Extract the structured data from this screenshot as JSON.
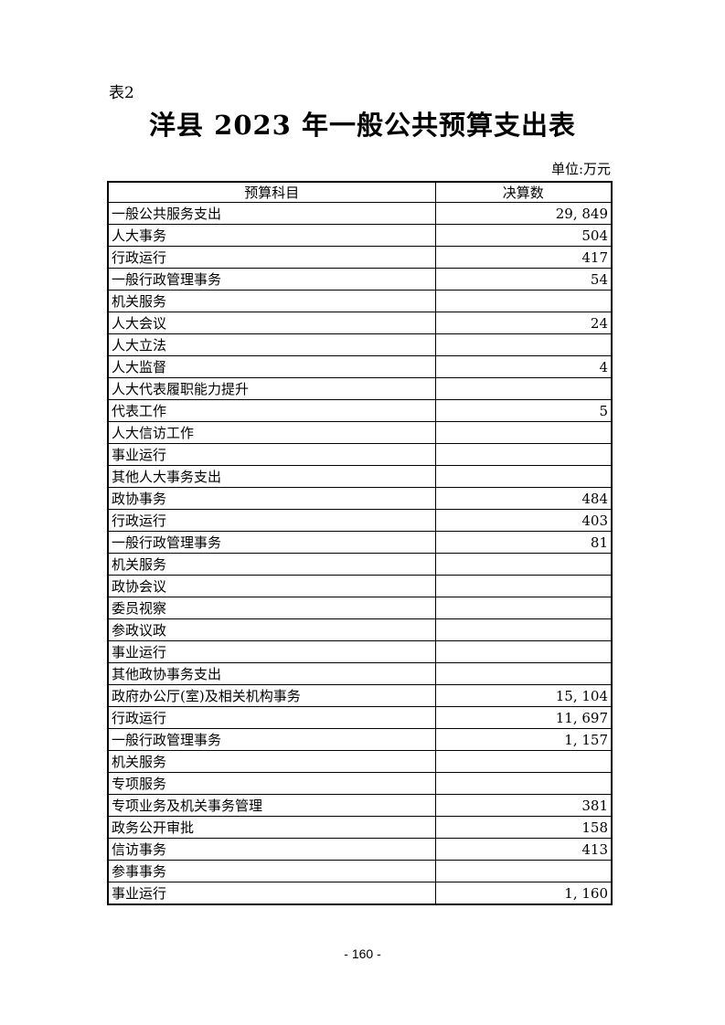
{
  "page": {
    "table_label": "表2",
    "title": "洋县 2023 年一般公共预算支出表",
    "unit_note": "单位:万元",
    "footer_page_number": "- 160 -"
  },
  "table": {
    "columns": [
      "预算科目",
      "决算数"
    ],
    "rows": [
      {
        "subject": "一般公共服务支出",
        "amount": "29, 849",
        "indent": 0
      },
      {
        "subject": "人大事务",
        "amount": "504",
        "indent": 1
      },
      {
        "subject": "行政运行",
        "amount": "417",
        "indent": 2
      },
      {
        "subject": "一般行政管理事务",
        "amount": "54",
        "indent": 2
      },
      {
        "subject": "机关服务",
        "amount": "",
        "indent": 2
      },
      {
        "subject": "人大会议",
        "amount": "24",
        "indent": 2
      },
      {
        "subject": "人大立法",
        "amount": "",
        "indent": 2
      },
      {
        "subject": "人大监督",
        "amount": "4",
        "indent": 2
      },
      {
        "subject": "人大代表履职能力提升",
        "amount": "",
        "indent": 2
      },
      {
        "subject": "代表工作",
        "amount": "5",
        "indent": 2
      },
      {
        "subject": "人大信访工作",
        "amount": "",
        "indent": 2
      },
      {
        "subject": "事业运行",
        "amount": "",
        "indent": 2
      },
      {
        "subject": "其他人大事务支出",
        "amount": "",
        "indent": 2
      },
      {
        "subject": "政协事务",
        "amount": "484",
        "indent": 1
      },
      {
        "subject": "行政运行",
        "amount": "403",
        "indent": 2
      },
      {
        "subject": "一般行政管理事务",
        "amount": "81",
        "indent": 2
      },
      {
        "subject": "机关服务",
        "amount": "",
        "indent": 2
      },
      {
        "subject": "政协会议",
        "amount": "",
        "indent": 2
      },
      {
        "subject": "委员视察",
        "amount": "",
        "indent": 2
      },
      {
        "subject": "参政议政",
        "amount": "",
        "indent": 2
      },
      {
        "subject": "事业运行",
        "amount": "",
        "indent": 2
      },
      {
        "subject": "其他政协事务支出",
        "amount": "",
        "indent": 2
      },
      {
        "subject": "政府办公厅(室)及相关机构事务",
        "amount": "15, 104",
        "indent": 1
      },
      {
        "subject": "行政运行",
        "amount": "11, 697",
        "indent": 2
      },
      {
        "subject": "一般行政管理事务",
        "amount": "1, 157",
        "indent": 2
      },
      {
        "subject": "机关服务",
        "amount": "",
        "indent": 2
      },
      {
        "subject": "专项服务",
        "amount": "",
        "indent": 2
      },
      {
        "subject": "专项业务及机关事务管理",
        "amount": "381",
        "indent": 2
      },
      {
        "subject": "政务公开审批",
        "amount": "158",
        "indent": 2
      },
      {
        "subject": "信访事务",
        "amount": "413",
        "indent": 2
      },
      {
        "subject": "参事事务",
        "amount": "",
        "indent": 2
      },
      {
        "subject": "事业运行",
        "amount": "1, 160",
        "indent": 2
      }
    ]
  }
}
